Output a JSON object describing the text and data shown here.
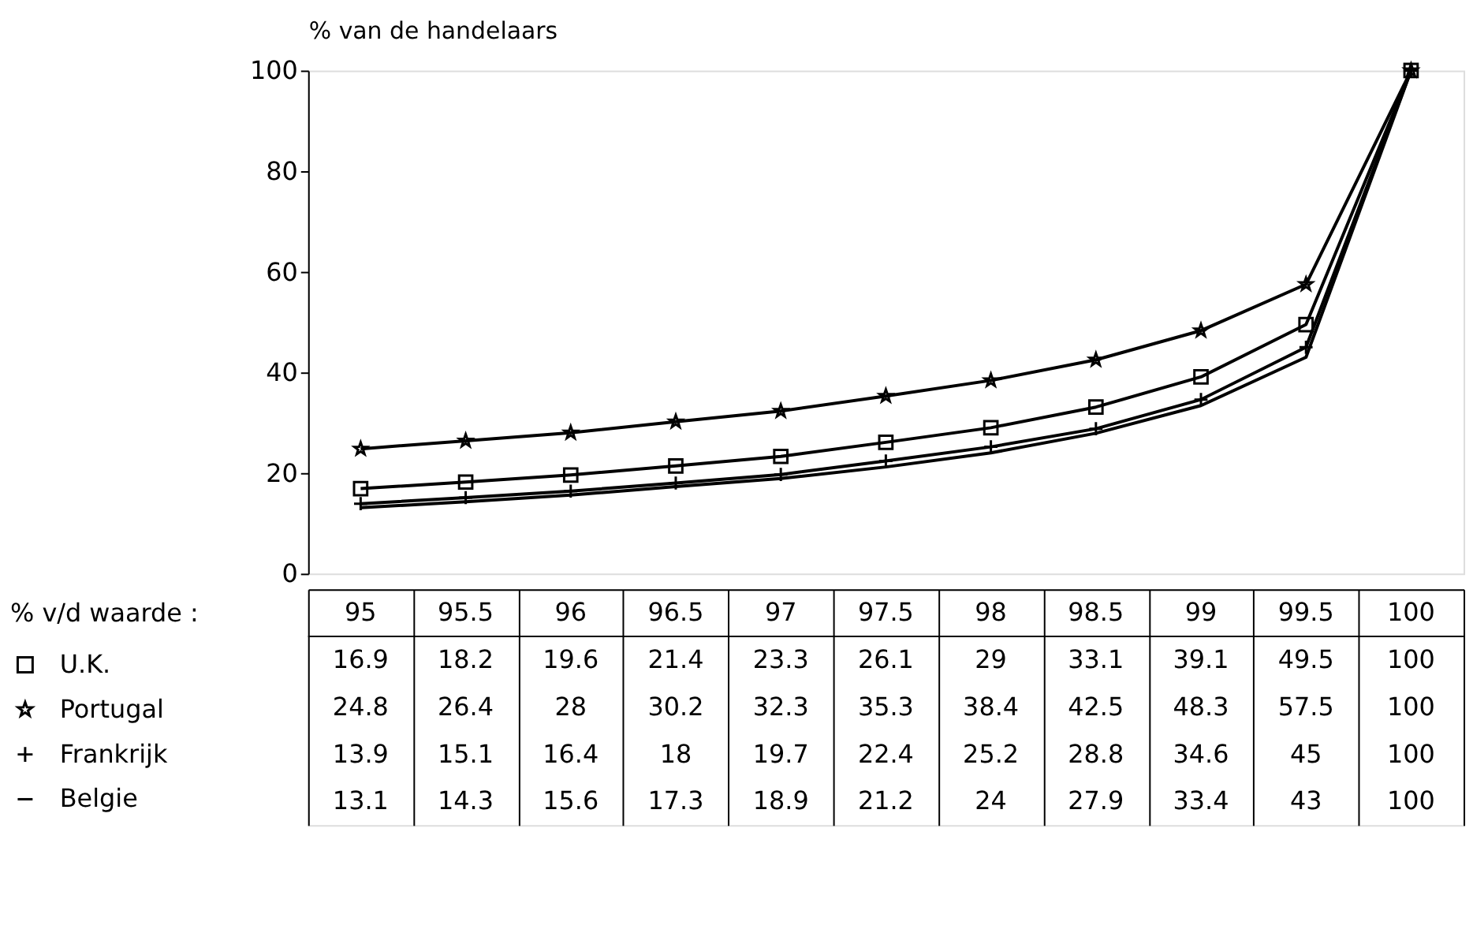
{
  "chart_data": {
    "type": "line",
    "ylabel": "% van de handelaars",
    "xlabel": "% v/d waarde :",
    "categories": [
      "95",
      "95.5",
      "96",
      "96.5",
      "97",
      "97.5",
      "98",
      "98.5",
      "99",
      "99.5",
      "100"
    ],
    "series": [
      {
        "name": "U.K.",
        "color": "#000000",
        "marker": "square",
        "values": [
          16.9,
          18.2,
          19.6,
          21.4,
          23.3,
          26.1,
          29,
          33.1,
          39.1,
          49.5,
          100
        ]
      },
      {
        "name": "Portugal",
        "color": "#000000",
        "marker": "star",
        "values": [
          24.8,
          26.4,
          28,
          30.2,
          32.3,
          35.3,
          38.4,
          42.5,
          48.3,
          57.5,
          100
        ]
      },
      {
        "name": "Frankrijk",
        "color": "#000000",
        "marker": "cross",
        "values": [
          13.9,
          15.1,
          16.4,
          18,
          19.7,
          22.4,
          25.2,
          28.8,
          34.6,
          45,
          100
        ]
      },
      {
        "name": "Belgie",
        "color": "#000000",
        "marker": "none",
        "values": [
          13.1,
          14.3,
          15.6,
          17.3,
          18.9,
          21.2,
          24,
          27.9,
          33.4,
          43,
          100
        ]
      }
    ],
    "ylim": [
      0,
      100
    ],
    "yticks": [
      0,
      20,
      40,
      60,
      80,
      100
    ],
    "grid": false,
    "legend": "bottom left",
    "data_labels": true
  }
}
